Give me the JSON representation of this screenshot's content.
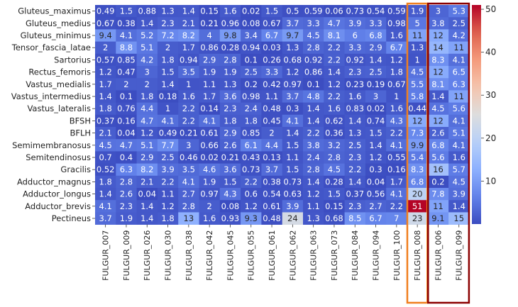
{
  "chart_data": {
    "type": "heatmap",
    "title": "",
    "xlabel": "",
    "ylabel": "",
    "rows": [
      "Gluteus_maximus",
      "Gluteus_medius",
      "Gluteus_minimus",
      "Tensor_fascia_latae",
      "Sartorius",
      "Rectus_femoris",
      "Vastus_medialis",
      "Vastus_intermedius",
      "Vastus_lateralis",
      "BFSH",
      "BFLH",
      "Semimembranosus",
      "Semitendinosus",
      "Gracilis",
      "Adductor_magnus",
      "Adductor_longus",
      "Adductor_brevis",
      "Pectineus"
    ],
    "columns": [
      "FULGUR_007",
      "FULGUR_009",
      "FULGUR_026",
      "FULGUR_030",
      "FULGUR_038",
      "FULGUR_042",
      "FULGUR_045",
      "FULGUR_055",
      "FULGUR_061",
      "FULGUR_062",
      "FULGUR_063",
      "FULGUR_073",
      "FULGUR_084",
      "FULGUR_094",
      "FULGUR_100",
      "FULGUR_008",
      "FULGUR_006",
      "FULGUR_099"
    ],
    "values": [
      [
        0.49,
        1.5,
        0.88,
        1.3,
        1.4,
        0.15,
        1.6,
        0.02,
        1.5,
        0.5,
        0.59,
        0.06,
        0.73,
        0.54,
        0.59,
        1.9,
        3,
        5.3
      ],
      [
        0.67,
        0.38,
        1.4,
        2.3,
        2.1,
        0.21,
        0.96,
        0.08,
        0.67,
        3.7,
        3.3,
        4.7,
        3.9,
        3.3,
        0.98,
        5,
        3.8,
        2.5
      ],
      [
        9.4,
        4.1,
        5.2,
        7.2,
        8.2,
        4,
        9.8,
        3.4,
        6.7,
        9.7,
        4.5,
        8.1,
        6,
        6.8,
        1.6,
        11,
        12,
        4.2
      ],
      [
        2,
        8.8,
        5.1,
        2,
        1.7,
        0.86,
        0.28,
        0.94,
        0.03,
        1.3,
        2.8,
        2.2,
        3.3,
        2.9,
        6.7,
        1.3,
        14,
        11
      ],
      [
        0.57,
        0.85,
        4.2,
        1.8,
        0.94,
        2.9,
        2.8,
        0.1,
        0.26,
        0.68,
        0.92,
        2.2,
        0.92,
        1.4,
        1.2,
        1,
        8.3,
        4.1
      ],
      [
        1.2,
        0.47,
        3,
        1.5,
        3.5,
        1.9,
        1.9,
        2.5,
        3.3,
        1.2,
        0.86,
        1.4,
        2.3,
        2.5,
        1.8,
        4.5,
        12,
        6.5
      ],
      [
        1.7,
        2,
        2,
        1.4,
        1,
        1.1,
        1.3,
        0.2,
        0.42,
        0.97,
        0.1,
        1.2,
        0.23,
        0.19,
        0.67,
        5.5,
        8.1,
        6.3
      ],
      [
        1.4,
        0.1,
        1.8,
        0.18,
        1.6,
        1.7,
        3.6,
        0.98,
        1.1,
        3.7,
        4.8,
        2.2,
        1.6,
        3,
        1,
        5.8,
        1.4,
        11
      ],
      [
        1.8,
        0.76,
        4.4,
        1,
        2.2,
        0.14,
        2.3,
        2.4,
        0.48,
        0.3,
        1.4,
        1.6,
        0.83,
        0.02,
        1.6,
        0.44,
        4.5,
        5.6
      ],
      [
        0.37,
        0.16,
        4.7,
        4.1,
        2.2,
        4.1,
        1.8,
        1.8,
        0.45,
        4.1,
        1.4,
        0.62,
        1.4,
        0.74,
        4.3,
        12,
        12,
        4.1
      ],
      [
        2.1,
        0.04,
        1.2,
        0.49,
        0.21,
        0.61,
        2.9,
        0.85,
        2,
        1.4,
        2.2,
        0.36,
        1.3,
        1.5,
        2.2,
        7.3,
        2.6,
        5.1
      ],
      [
        4.5,
        4.7,
        5.1,
        7.7,
        3,
        0.66,
        2.6,
        6.1,
        4.4,
        1.5,
        3.8,
        3.2,
        2.5,
        1.4,
        4.1,
        9.9,
        6.8,
        4.1
      ],
      [
        0.7,
        0.4,
        2.9,
        2.5,
        0.46,
        0.02,
        0.21,
        0.43,
        0.13,
        1.1,
        2.4,
        2.8,
        2.3,
        1.2,
        0.55,
        5.4,
        5.6,
        1.6
      ],
      [
        0.52,
        6.3,
        8.2,
        3.9,
        3.5,
        4.6,
        3.6,
        0.73,
        3.7,
        1.5,
        2.8,
        4.5,
        2.2,
        0.3,
        0.16,
        8.3,
        16,
        5.7
      ],
      [
        1.8,
        2.8,
        2.1,
        2.2,
        4.1,
        1.9,
        1.5,
        2.2,
        0.38,
        0.73,
        1.4,
        0.28,
        1.4,
        0.04,
        1.7,
        6.8,
        0.2,
        4.5
      ],
      [
        1.4,
        2.6,
        0.04,
        1.1,
        2.7,
        0.97,
        4.3,
        0.6,
        0.54,
        0.63,
        1.2,
        1.5,
        0.37,
        0.56,
        4.1,
        20,
        7.8,
        3.9
      ],
      [
        4.1,
        2.3,
        1.4,
        1.2,
        2.8,
        2,
        0.08,
        1.2,
        0.61,
        3.9,
        1.1,
        0.15,
        2.3,
        2.7,
        2.2,
        51,
        11,
        1.4
      ],
      [
        3.7,
        1.9,
        1.4,
        1.8,
        13,
        1.6,
        0.93,
        9.3,
        0.48,
        24,
        1.3,
        0.68,
        8.5,
        6.7,
        7,
        23,
        9.1,
        15
      ]
    ],
    "colormap": "coolwarm",
    "vmin": 0,
    "vmax": 51,
    "colorbar_ticks": [
      10,
      20,
      30,
      40,
      50
    ],
    "highlight_boxes": [
      {
        "columns": [
          "FULGUR_008"
        ],
        "color": "#f07f1f"
      },
      {
        "columns": [
          "FULGUR_006",
          "FULGUR_099"
        ],
        "color": "#8b0000"
      }
    ],
    "legend": "colorbar-right"
  }
}
